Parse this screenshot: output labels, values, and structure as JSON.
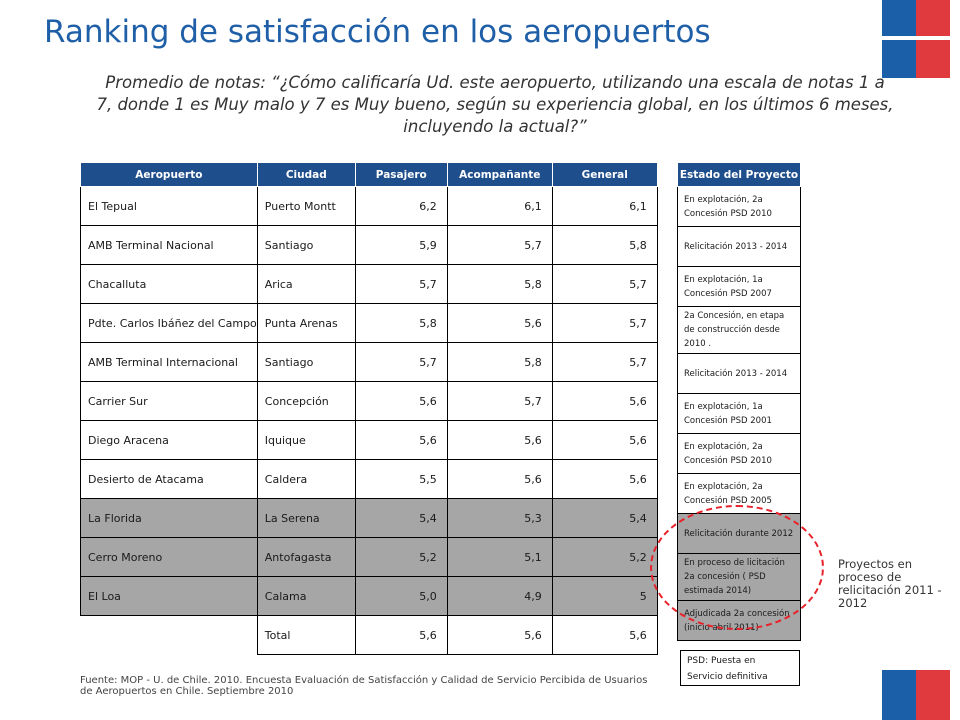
{
  "title": "Ranking de satisfacción en los aeropuertos",
  "subtitle": "Promedio de notas: “¿Cómo calificaría Ud. este aeropuerto, utilizando una escala de notas  1 a 7, donde 1 es Muy malo y 7 es Muy bueno, según su experiencia global, en los últimos 6 meses, incluyendo la actual?”",
  "table": {
    "headers": [
      "Aeropuerto",
      "Ciudad",
      "Pasajero",
      "Acompañante",
      "General"
    ],
    "rows": [
      [
        "El Tepual",
        "Puerto Montt",
        "6,2",
        "6,1",
        "6,1"
      ],
      [
        "AMB Terminal Nacional",
        "Santiago",
        "5,9",
        "5,7",
        "5,8"
      ],
      [
        "Chacalluta",
        "Arica",
        "5,7",
        "5,8",
        "5,7"
      ],
      [
        "Pdte. Carlos Ibáñez del Campo",
        "Punta Arenas",
        "5,8",
        "5,6",
        "5,7"
      ],
      [
        "AMB Terminal Internacional",
        "Santiago",
        "5,7",
        "5,8",
        "5,7"
      ],
      [
        "Carrier Sur",
        "Concepción",
        "5,6",
        "5,7",
        "5,6"
      ],
      [
        "Diego Aracena",
        "Iquique",
        "5,6",
        "5,6",
        "5,6"
      ],
      [
        "Desierto de Atacama",
        "Caldera",
        "5,5",
        "5,6",
        "5,6"
      ],
      [
        "La Florida",
        "La Serena",
        "5,4",
        "5,3",
        "5,4"
      ],
      [
        "Cerro Moreno",
        "Antofagasta",
        "5,2",
        "5,1",
        "5,2"
      ],
      [
        "El Loa",
        "Calama",
        "5,0",
        "4,9",
        "5"
      ]
    ],
    "total": [
      "Total",
      "5,6",
      "5,6",
      "5,6"
    ]
  },
  "status": {
    "header": "Estado del Proyecto",
    "items": [
      "En explotación, 2a Concesión PSD 2010",
      "Relicitación 2013 - 2014",
      "En explotación, 1a Concesión PSD 2007",
      "2a Concesión, en etapa de construcción desde 2010 .",
      "Relicitación 2013 - 2014",
      "En explotación, 1a Concesión PSD 2001",
      "En explotación, 2a Concesión PSD 2010",
      "En explotación, 2a Concesión PSD 2005",
      "Relicitación durante 2012",
      "En proceso de licitación 2a concesión ( PSD estimada 2014)",
      "Adjudicada 2a concesión (inicio abril 2011)"
    ]
  },
  "psd_note": "PSD: Puesta en Servicio definitiva",
  "projects_note": "Proyectos en proceso de relicitación 2011 - 2012",
  "source": "Fuente: MOP - U. de Chile. 2010. Encuesta Evaluación de Satisfacción y Calidad de Servicio Percibida de Usuarios de Aeropuertos en Chile. Septiembre 2010",
  "colors": {
    "header_blue": "#1f4e8c",
    "title_blue": "#1f5fa8",
    "highlight_gray": "#a6a6a6",
    "circle_red": "#e8232b",
    "flag_blue": "#1b5fa9",
    "flag_red": "#e0393e"
  }
}
